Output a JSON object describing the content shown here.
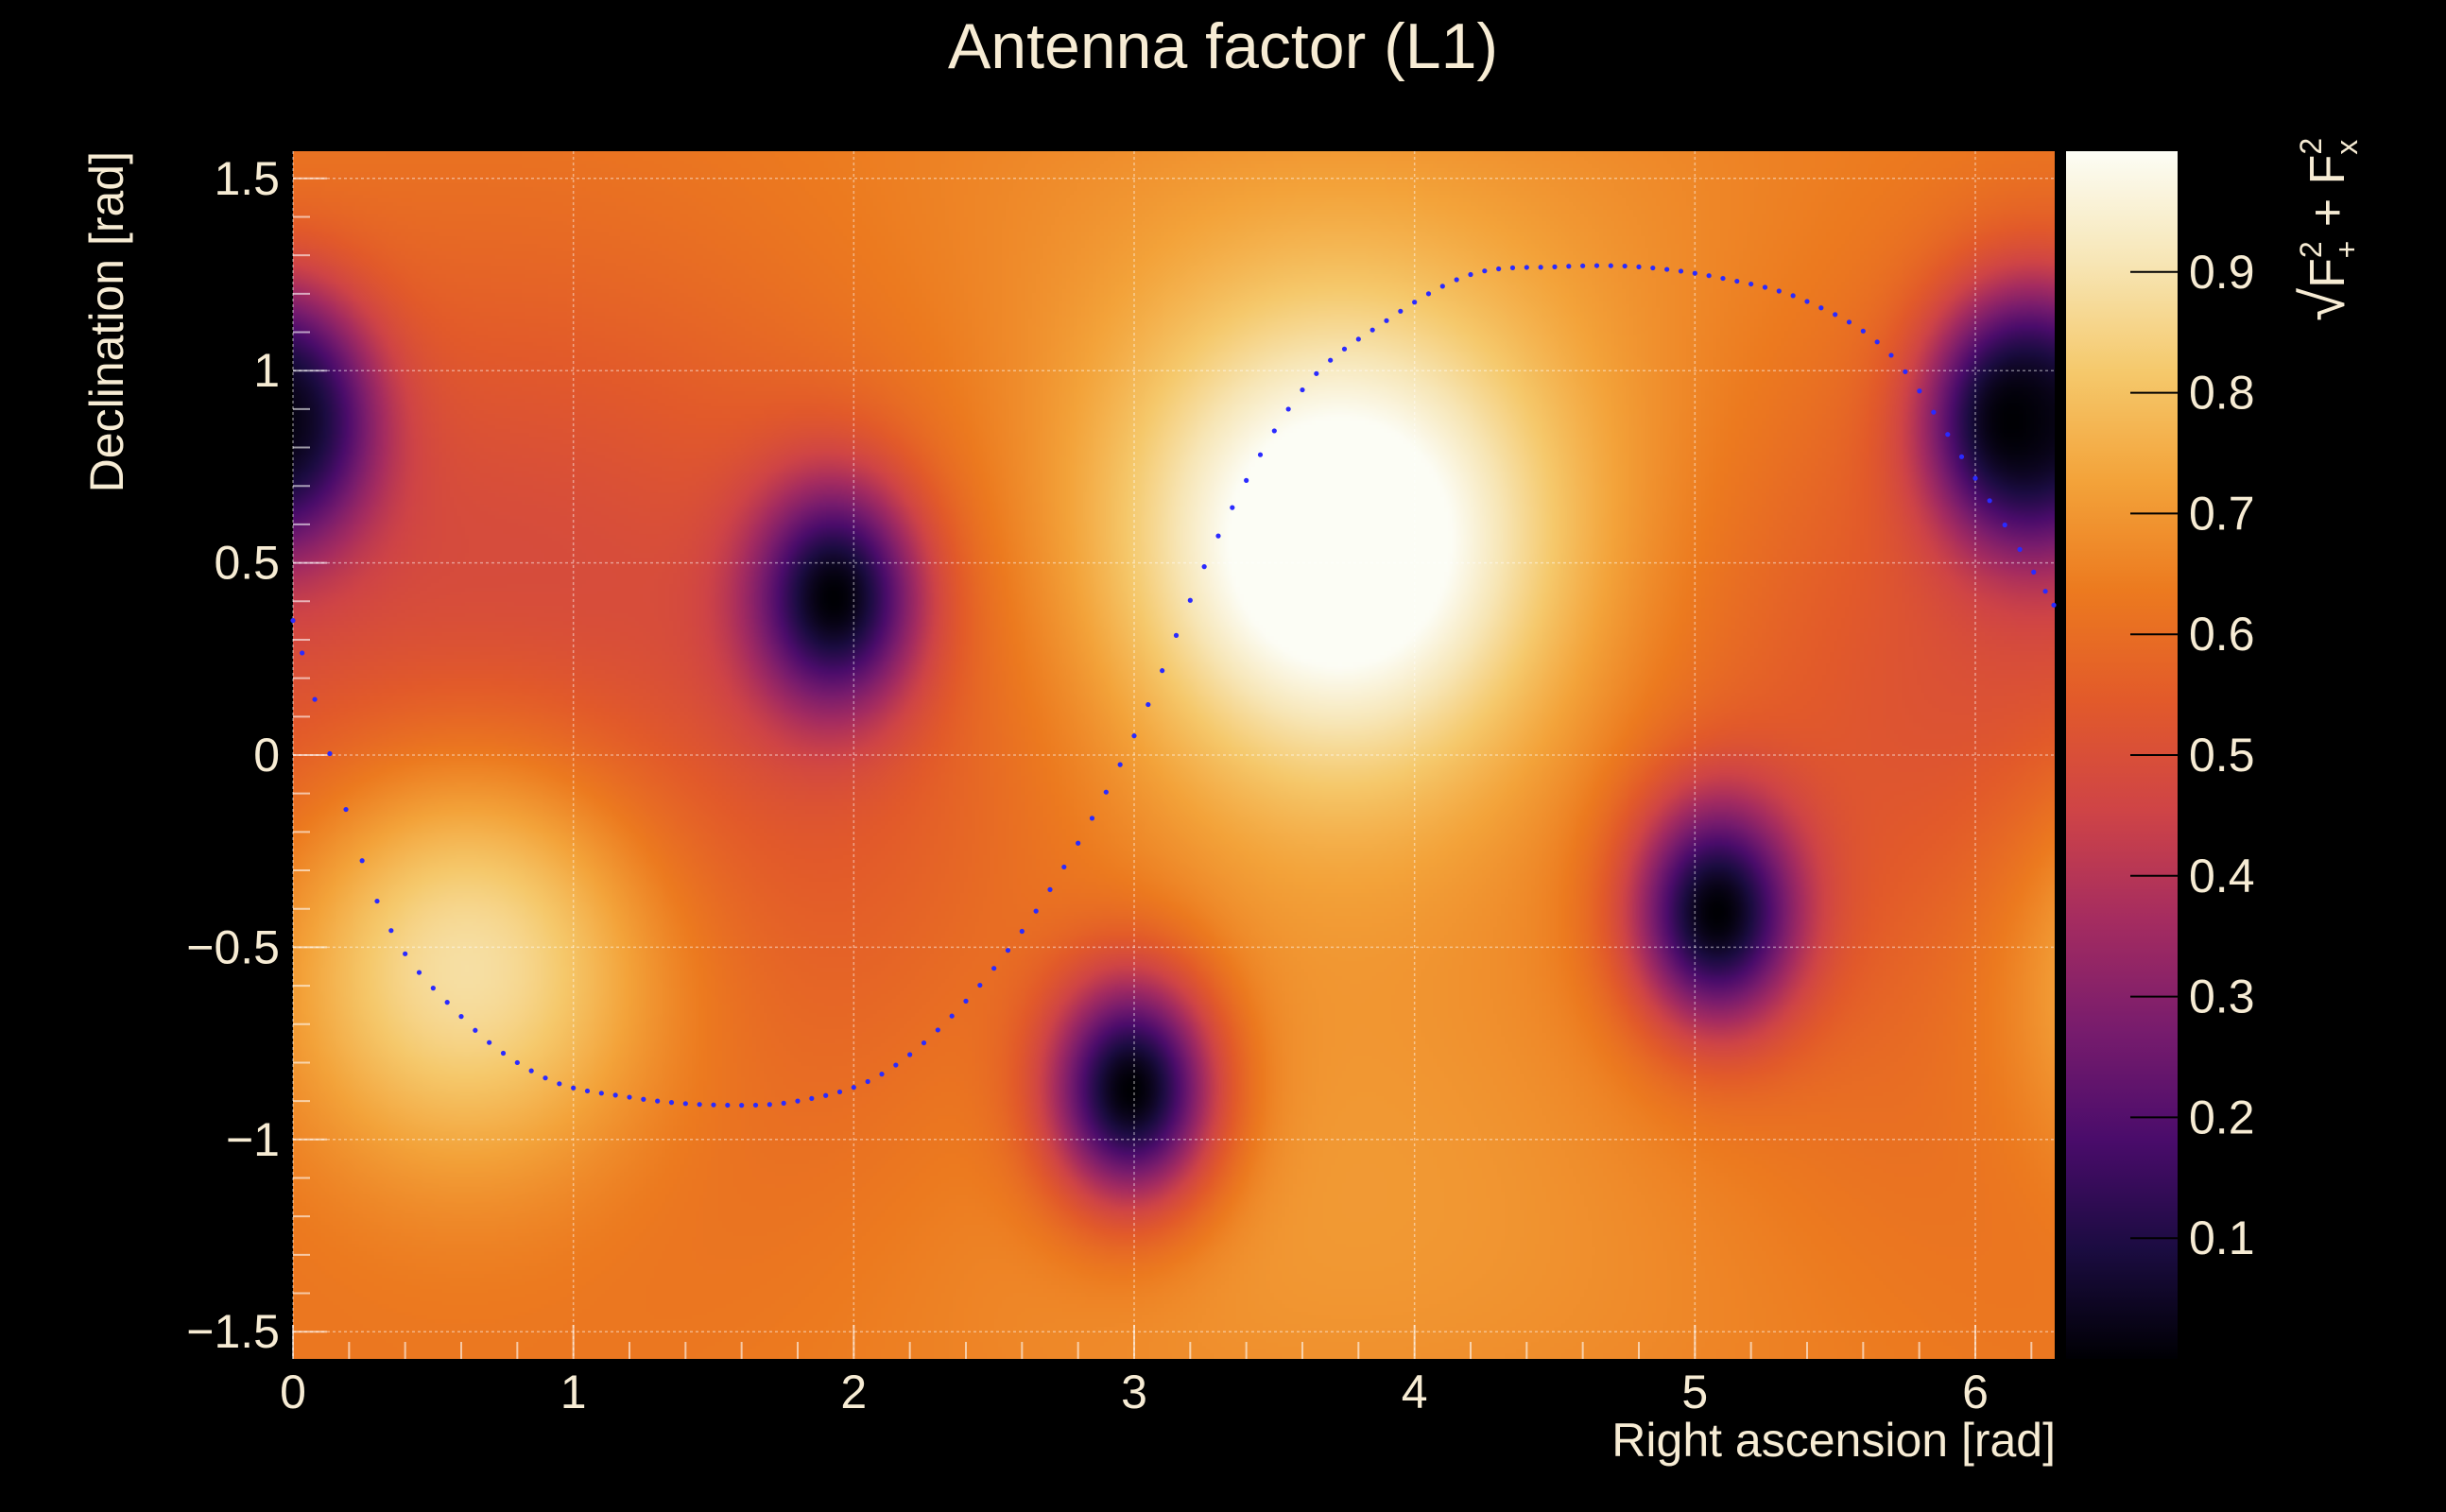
{
  "chart_data": {
    "type": "heatmap",
    "title": "Antenna factor (L1)",
    "xlabel": "Right ascension [rad]",
    "ylabel": "Declination [rad]",
    "colorbar_label": "√(F₊² + Fₓ²)",
    "colorbar_label_parts": {
      "root": "√",
      "base1": "F",
      "sup1": "2",
      "sub1": "+",
      "plus": " + ",
      "base2": "F",
      "sup2": "2",
      "sub2": "x"
    },
    "xlim": [
      0,
      6.2832
    ],
    "ylim": [
      -1.5708,
      1.5708
    ],
    "zlim": [
      0,
      1
    ],
    "grid": true,
    "x_ticks": [
      "0",
      "1",
      "2",
      "3",
      "4",
      "5",
      "6"
    ],
    "y_ticks": [
      "−1.5",
      "−1",
      "−0.5",
      "0",
      "0.5",
      "1",
      "1.5"
    ],
    "colorbar_ticks": [
      "0.1",
      "0.2",
      "0.3",
      "0.4",
      "0.5",
      "0.6",
      "0.7",
      "0.8",
      "0.9"
    ],
    "colormap": [
      "#000004",
      "#1b0c41",
      "#4a0c6b",
      "#781c6d",
      "#a52c60",
      "#cf4446",
      "#e25a2a",
      "#ec7a1f",
      "#f3a33a",
      "#f5c96c",
      "#f7e6b6",
      "#fcfdf5"
    ],
    "peaks": [
      {
        "x": 0.62,
        "y": -0.5,
        "value": 1.0
      },
      {
        "x": 3.73,
        "y": 0.53,
        "value": 1.0
      }
    ],
    "minima": [
      {
        "x": 1.93,
        "y": 0.41,
        "value": 0.0
      },
      {
        "x": 2.99,
        "y": -0.87,
        "value": 0.0
      },
      {
        "x": 5.08,
        "y": -0.41,
        "value": 0.0
      },
      {
        "x": 6.13,
        "y": 0.87,
        "value": 0.0
      },
      {
        "x": 0.0,
        "y": 0.87,
        "value": 0.2
      }
    ],
    "series": [
      {
        "type": "dotted-line",
        "color": "#2a2aff",
        "x": [
          0.0,
          0.3,
          0.6,
          0.9,
          1.2,
          1.5,
          1.8,
          2.1,
          2.4,
          2.7,
          3.0,
          3.3,
          3.6,
          3.9,
          4.2,
          4.5,
          4.8,
          5.1,
          5.4,
          5.7,
          6.0,
          6.28
        ],
        "y": [
          0.35,
          -0.38,
          -0.68,
          -0.84,
          -0.89,
          -0.91,
          -0.9,
          -0.83,
          -0.64,
          -0.35,
          0.05,
          0.57,
          0.95,
          1.13,
          1.25,
          1.27,
          1.27,
          1.24,
          1.18,
          1.04,
          0.72,
          0.39
        ]
      }
    ]
  }
}
